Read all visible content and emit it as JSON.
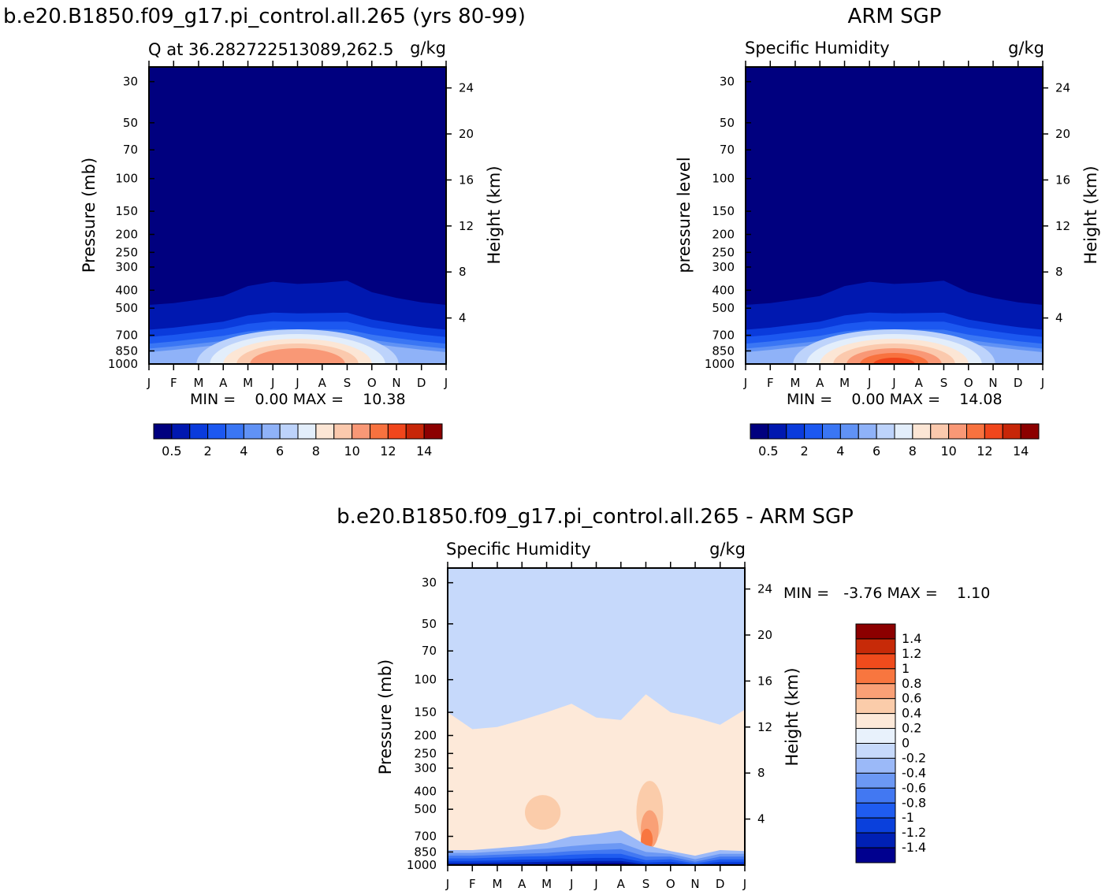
{
  "figure": {
    "title_left": "b.e20.B1850.f09_g17.pi_control.all.265 (yrs 80-99)",
    "title_right": "ARM SGP",
    "title_bottom": "b.e20.B1850.f09_g17.pi_control.all.265 - ARM SGP"
  },
  "months": [
    "J",
    "F",
    "M",
    "A",
    "M",
    "J",
    "J",
    "A",
    "S",
    "O",
    "N",
    "D",
    "J"
  ],
  "pressure_ticks": [
    {
      "p": 30,
      "label": "30"
    },
    {
      "p": 50,
      "label": "50"
    },
    {
      "p": 70,
      "label": "70"
    },
    {
      "p": 100,
      "label": "100"
    },
    {
      "p": 150,
      "label": "150"
    },
    {
      "p": 200,
      "label": "200"
    },
    {
      "p": 250,
      "label": "250"
    },
    {
      "p": 300,
      "label": "300"
    },
    {
      "p": 400,
      "label": "400"
    },
    {
      "p": 500,
      "label": "500"
    },
    {
      "p": 700,
      "label": "700"
    },
    {
      "p": 850,
      "label": "850"
    },
    {
      "p": 1000,
      "label": "1000"
    }
  ],
  "height_ticks": [
    {
      "km": 4,
      "label": "4"
    },
    {
      "km": 8,
      "label": "8"
    },
    {
      "km": 12,
      "label": "12"
    },
    {
      "km": 16,
      "label": "16"
    },
    {
      "km": 20,
      "label": "20"
    },
    {
      "km": 24,
      "label": "24"
    }
  ],
  "abs_palette": [
    "#00007f",
    "#0018b0",
    "#0a3bdc",
    "#1c58f0",
    "#3a76f4",
    "#6092f5",
    "#8fb2f8",
    "#bdd3fb",
    "#e3eefb",
    "#fce6d5",
    "#fbc9ad",
    "#f99876",
    "#f8723f",
    "#f0461c",
    "#c72608",
    "#8c0000"
  ],
  "abs_colorbar_labels": [
    "0.5",
    "2",
    "4",
    "6",
    "8",
    "10",
    "12",
    "14"
  ],
  "diff_palette": [
    "#00008f",
    "#0020b4",
    "#0a40dc",
    "#1f5cf0",
    "#4278f2",
    "#6c98f4",
    "#9bb9f8",
    "#c6d9fb",
    "#e8f1fc",
    "#fde9d9",
    "#fbccaa",
    "#f9a076",
    "#f8763f",
    "#f04b1c",
    "#c72a08",
    "#8c0000"
  ],
  "diff_colorbar_labels": [
    "1.4",
    "1.2",
    "1",
    "0.8",
    "0.6",
    "0.4",
    "0.2",
    "0",
    "-0.2",
    "-0.4",
    "-0.6",
    "-0.8",
    "-1",
    "-1.2",
    "-1.4"
  ],
  "chart_data": [
    {
      "type": "heatmap",
      "left_title": "Q at 36.282722513089,262.5",
      "right_title": "g/kg",
      "ylabel": "Pressure (mb)",
      "ylabel_right": "Height (km)",
      "x_categories": [
        "J",
        "F",
        "M",
        "A",
        "M",
        "J",
        "J",
        "A",
        "S",
        "O",
        "N",
        "D",
        "J"
      ],
      "y_scale": "log pressure",
      "ylim_mb": [
        1000,
        25
      ],
      "stats_label": "MIN =    0.00 MAX =    10.38",
      "min": 0.0,
      "max": 10.38,
      "colorbar_labels": [
        "0.5",
        "2",
        "4",
        "6",
        "8",
        "10",
        "12",
        "14"
      ]
    },
    {
      "type": "heatmap",
      "left_title": "Specific Humidity",
      "right_title": "g/kg",
      "ylabel": "pressure level",
      "ylabel_right": "Height (km)",
      "x_categories": [
        "J",
        "F",
        "M",
        "A",
        "M",
        "J",
        "J",
        "A",
        "S",
        "O",
        "N",
        "D",
        "J"
      ],
      "y_scale": "log pressure",
      "ylim_mb": [
        1000,
        25
      ],
      "stats_label": "MIN =    0.00 MAX =    14.08",
      "min": 0.0,
      "max": 14.08,
      "colorbar_labels": [
        "0.5",
        "2",
        "4",
        "6",
        "8",
        "10",
        "12",
        "14"
      ]
    },
    {
      "type": "heatmap",
      "left_title": "Specific Humidity",
      "right_title": "g/kg",
      "ylabel": "Pressure (mb)",
      "ylabel_right": "Height (km)",
      "x_categories": [
        "J",
        "F",
        "M",
        "A",
        "M",
        "J",
        "J",
        "A",
        "S",
        "O",
        "N",
        "D",
        "J"
      ],
      "y_scale": "log pressure",
      "ylim_mb": [
        1000,
        25
      ],
      "stats_label": "MIN =   -3.76 MAX =    1.10",
      "min": -3.76,
      "max": 1.1,
      "colorbar_labels": [
        "1.4",
        "1.2",
        "1",
        "0.8",
        "0.6",
        "0.4",
        "0.2",
        "0",
        "-0.2",
        "-0.4",
        "-0.6",
        "-0.8",
        "-1",
        "-1.2",
        "-1.4"
      ]
    }
  ]
}
